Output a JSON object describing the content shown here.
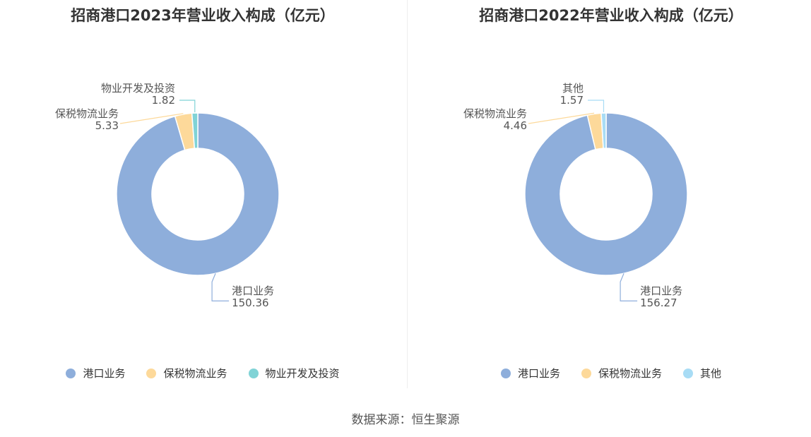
{
  "source_label": "数据来源：恒生聚源",
  "chart_data": [
    {
      "type": "pie",
      "title": "招商港口2023年营业收入构成（亿元）",
      "categories": [
        "港口业务",
        "保税物流业务",
        "物业开发及投资"
      ],
      "values": [
        150.36,
        5.33,
        1.82
      ],
      "value_labels": [
        "150.36",
        "5.33",
        "1.82"
      ],
      "colors": [
        "#8eaedb",
        "#fdd99a",
        "#80d3d6"
      ],
      "legend_position": "bottom"
    },
    {
      "type": "pie",
      "title": "招商港口2022年营业收入构成（亿元）",
      "categories": [
        "港口业务",
        "保税物流业务",
        "其他"
      ],
      "values": [
        156.27,
        4.46,
        1.57
      ],
      "value_labels": [
        "156.27",
        "4.46",
        "1.57"
      ],
      "colors": [
        "#8eaedb",
        "#fdd99a",
        "#a8dcf5"
      ],
      "legend_position": "bottom"
    }
  ]
}
